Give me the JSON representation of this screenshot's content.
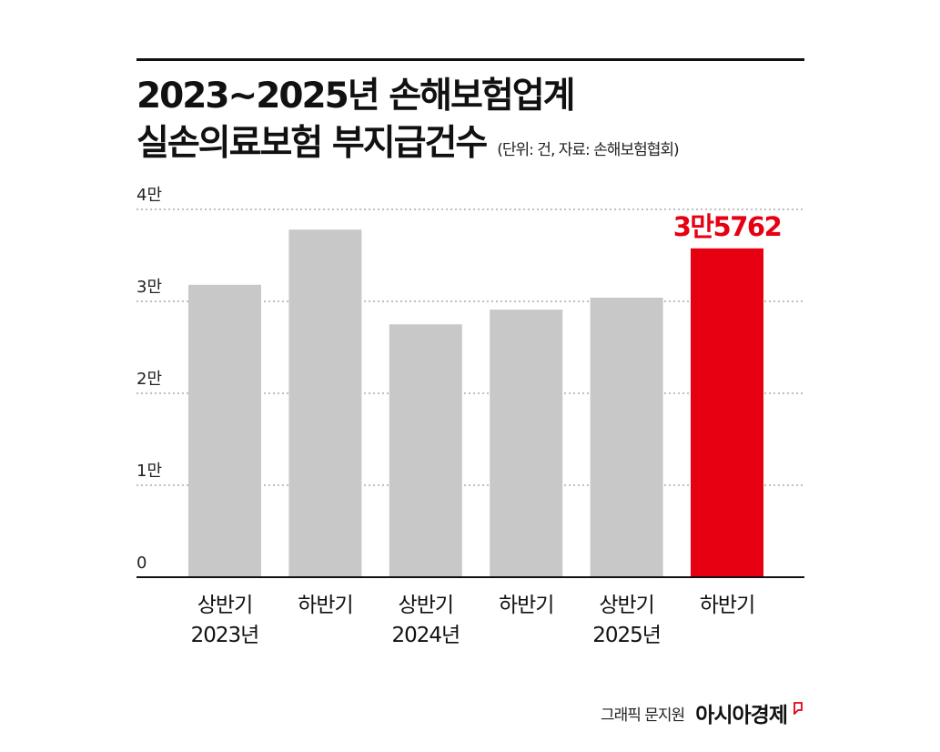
{
  "header": {
    "title_line1": "2023~2025년 손해보험업계",
    "title_line2": "실손의료보험 부지급건수",
    "subtitle": "(단위: 건, 자료: 손해보험협회)"
  },
  "chart_data": {
    "type": "bar",
    "categories": [
      [
        "상반기",
        "2023년"
      ],
      [
        "하반기",
        ""
      ],
      [
        "상반기",
        "2024년"
      ],
      [
        "하반기",
        ""
      ],
      [
        "상반기",
        "2025년"
      ],
      [
        "하반기",
        ""
      ]
    ],
    "values": [
      31800,
      37800,
      27500,
      29100,
      30400,
      35762
    ],
    "ylim": [
      0,
      40000
    ],
    "yticks": [
      {
        "value": 0,
        "label": "0"
      },
      {
        "value": 10000,
        "label": "1만"
      },
      {
        "value": 20000,
        "label": "2만"
      },
      {
        "value": 30000,
        "label": "3만"
      },
      {
        "value": 40000,
        "label": "4만"
      }
    ],
    "grid": true,
    "annotation": {
      "index": 5,
      "label": "3만5762"
    },
    "colors": {
      "default": "#c8c8c8",
      "highlight": "#e60012",
      "grid": "#999999",
      "axis": "#111111"
    }
  },
  "footer": {
    "credit": "그래픽 문지원",
    "brand": "아시아경제",
    "brand_color": "#e60012"
  }
}
